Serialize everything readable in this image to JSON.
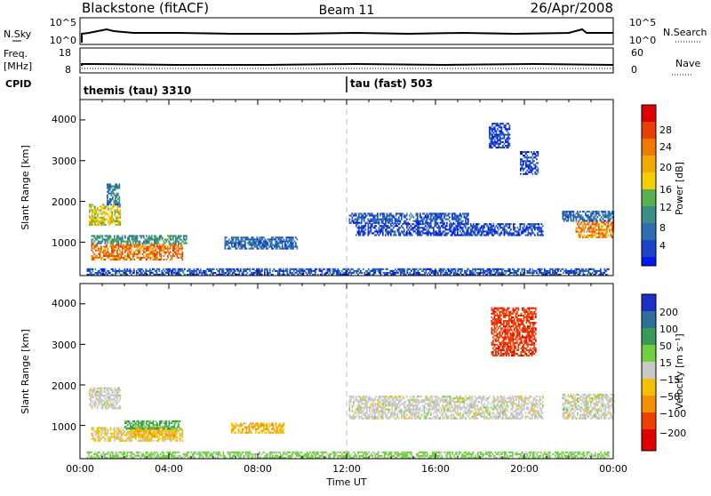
{
  "header": {
    "station": "Blackstone (fitACF)",
    "beam": "Beam 11",
    "date": "26/Apr/2008"
  },
  "sky_panel": {
    "left_label": "N.Sky",
    "right_label": "N.Search",
    "left_ticks": [
      "10^5",
      "10^0"
    ],
    "right_ticks": [
      "10^5",
      "10^0"
    ]
  },
  "freq_panel": {
    "left_label_1": "Freq.",
    "left_label_2": "[MHz]",
    "right_label": "Nave",
    "left_ticks": [
      "18",
      "8"
    ],
    "right_ticks": [
      "60",
      "0"
    ]
  },
  "cpid_panel": {
    "label": "CPID",
    "segments": [
      {
        "label": "themis (tau) 3310",
        "start_hour": 0
      },
      {
        "label": "tau (fast) 503",
        "start_hour": 12
      }
    ]
  },
  "x_axis": {
    "label": "Time UT",
    "ticks": [
      "00:00",
      "04:00",
      "08:00",
      "12:00",
      "16:00",
      "20:00",
      "00:00"
    ]
  },
  "power_panel": {
    "ylabel": "Slant Range [km]",
    "yticks": [
      "4000",
      "3000",
      "2000",
      "1000"
    ],
    "colorbar_label": "Power [dB]",
    "colorbar_ticks": [
      "28",
      "24",
      "20",
      "16",
      "12",
      "8",
      "4"
    ]
  },
  "velocity_panel": {
    "ylabel": "Slant Range [km]",
    "yticks": [
      "4000",
      "3000",
      "2000",
      "1000"
    ],
    "colorbar_label": "Velocity [m s⁻¹]",
    "colorbar_ticks": [
      "200",
      "100",
      "50",
      "15",
      "−15",
      "−50",
      "−100",
      "−200"
    ]
  },
  "chart_data": {
    "type": "heatmap",
    "x_unit": "hours UT",
    "xlim": [
      0,
      24
    ],
    "ylim_km": [
      180,
      4500
    ],
    "power_colorscale": [
      "#0018e8",
      "#1c44c8",
      "#2e6fb4",
      "#3a8e86",
      "#58b050",
      "#f2d000",
      "#f5a800",
      "#f07a00",
      "#e84000",
      "#e00000"
    ],
    "velocity_colorscale": [
      "#1c2fc8",
      "#2e6f9c",
      "#3a9a5a",
      "#70d040",
      "#c8c8c8",
      "#f5c000",
      "#f39000",
      "#ef4000",
      "#e00000"
    ],
    "power_regions": [
      {
        "t": [
          0.4,
          1.8
        ],
        "r": [
          1400,
          1900
        ],
        "level": 0.55
      },
      {
        "t": [
          1.2,
          1.8
        ],
        "r": [
          1900,
          2400
        ],
        "level": 0.25
      },
      {
        "t": [
          0.5,
          4.6
        ],
        "r": [
          550,
          950
        ],
        "level": 0.8
      },
      {
        "t": [
          0.5,
          4.8
        ],
        "r": [
          950,
          1150
        ],
        "level": 0.35
      },
      {
        "t": [
          6.5,
          9.8
        ],
        "r": [
          820,
          1100
        ],
        "level": 0.2
      },
      {
        "t": [
          0.3,
          23.8
        ],
        "r": [
          180,
          330
        ],
        "level": 0.15
      },
      {
        "t": [
          12.1,
          17.5
        ],
        "r": [
          1450,
          1700
        ],
        "level": 0.15
      },
      {
        "t": [
          12.4,
          20.8
        ],
        "r": [
          1150,
          1450
        ],
        "level": 0.1
      },
      {
        "t": [
          18.4,
          19.3
        ],
        "r": [
          3300,
          3900
        ],
        "level": 0.08
      },
      {
        "t": [
          19.8,
          20.6
        ],
        "r": [
          2650,
          3200
        ],
        "level": 0.08
      },
      {
        "t": [
          21.7,
          24.0
        ],
        "r": [
          1500,
          1750
        ],
        "level": 0.2
      },
      {
        "t": [
          22.3,
          24.0
        ],
        "r": [
          1100,
          1500
        ],
        "level": 0.75
      }
    ],
    "velocity_regions": [
      {
        "t": [
          0.4,
          1.8
        ],
        "r": [
          1400,
          1900
        ],
        "level": 0.0
      },
      {
        "t": [
          0.5,
          4.6
        ],
        "r": [
          600,
          950
        ],
        "level": -0.15
      },
      {
        "t": [
          2.3,
          4.3
        ],
        "r": [
          700,
          950
        ],
        "level": -0.35
      },
      {
        "t": [
          6.8,
          9.2
        ],
        "r": [
          800,
          1050
        ],
        "level": -0.35
      },
      {
        "t": [
          0.3,
          23.8
        ],
        "r": [
          180,
          330
        ],
        "level": 0.2
      },
      {
        "t": [
          12.1,
          20.8
        ],
        "r": [
          1150,
          1700
        ],
        "level": 0.0
      },
      {
        "t": [
          18.5,
          20.5
        ],
        "r": [
          2700,
          3900
        ],
        "level": -0.8
      },
      {
        "t": [
          21.7,
          24.0
        ],
        "r": [
          1150,
          1750
        ],
        "level": 0.0
      },
      {
        "t": [
          2.0,
          4.5
        ],
        "r": [
          900,
          1100
        ],
        "level": 0.4
      }
    ]
  }
}
